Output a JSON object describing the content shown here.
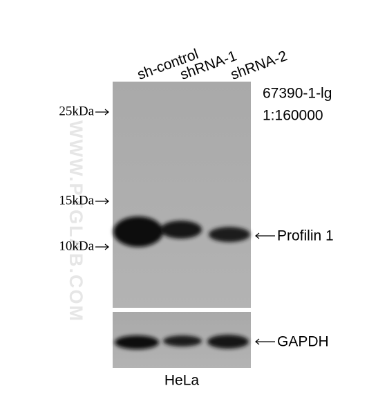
{
  "lanes": [
    "sh-control",
    "shRNA-1",
    "shRNA-2"
  ],
  "markers": [
    "25kDa",
    "15kDa",
    "10kDa"
  ],
  "antibody": {
    "catalog": "67390-1-lg",
    "dilution": "1:160000"
  },
  "bands": [
    "Profilin 1",
    "GAPDH"
  ],
  "cell_line": "HeLa",
  "watermark": "WWW.PTGLAB.COM"
}
